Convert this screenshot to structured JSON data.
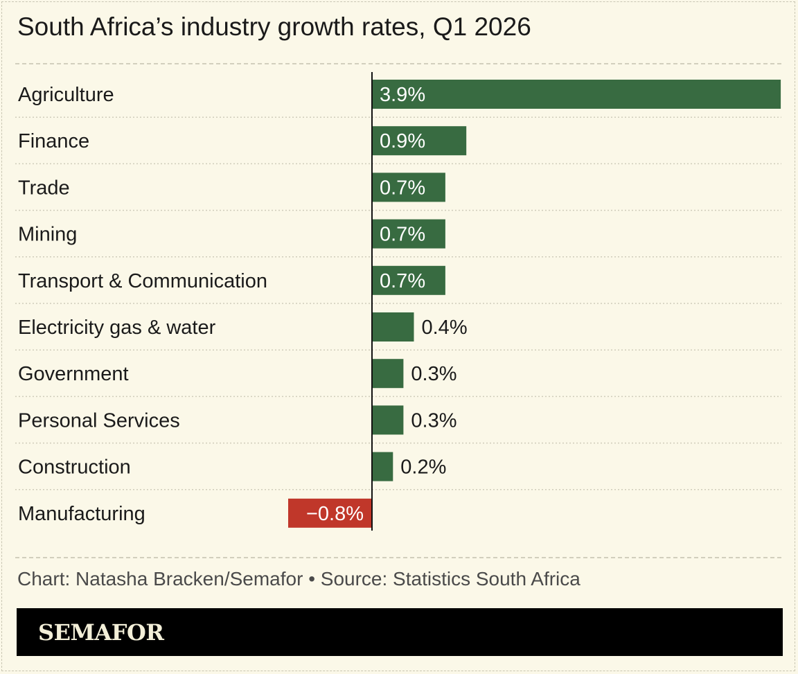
{
  "title": "South Africa’s industry growth rates, Q1 2026",
  "caption": "Chart: Natasha Bracken/Semafor • Source: Statistics South Africa",
  "brand": "SEMAFOR",
  "colors": {
    "positive": "#386b41",
    "negative": "#c0372a",
    "background": "#fbf8e8"
  },
  "chart_data": {
    "type": "bar",
    "orientation": "horizontal",
    "categories": [
      "Agriculture",
      "Finance",
      "Trade",
      "Mining",
      "Transport & Communication",
      "Electricity gas & water",
      "Government",
      "Personal Services",
      "Construction",
      "Manufacturing"
    ],
    "values": [
      3.9,
      0.9,
      0.7,
      0.7,
      0.7,
      0.4,
      0.3,
      0.3,
      0.2,
      -0.8
    ],
    "value_labels": [
      "3.9%",
      "0.9%",
      "0.7%",
      "0.7%",
      "0.7%",
      "0.4%",
      "0.3%",
      "0.3%",
      "0.2%",
      "−0.8%"
    ],
    "xlim": [
      -0.8,
      3.9
    ],
    "grid": false,
    "legend": "none"
  }
}
